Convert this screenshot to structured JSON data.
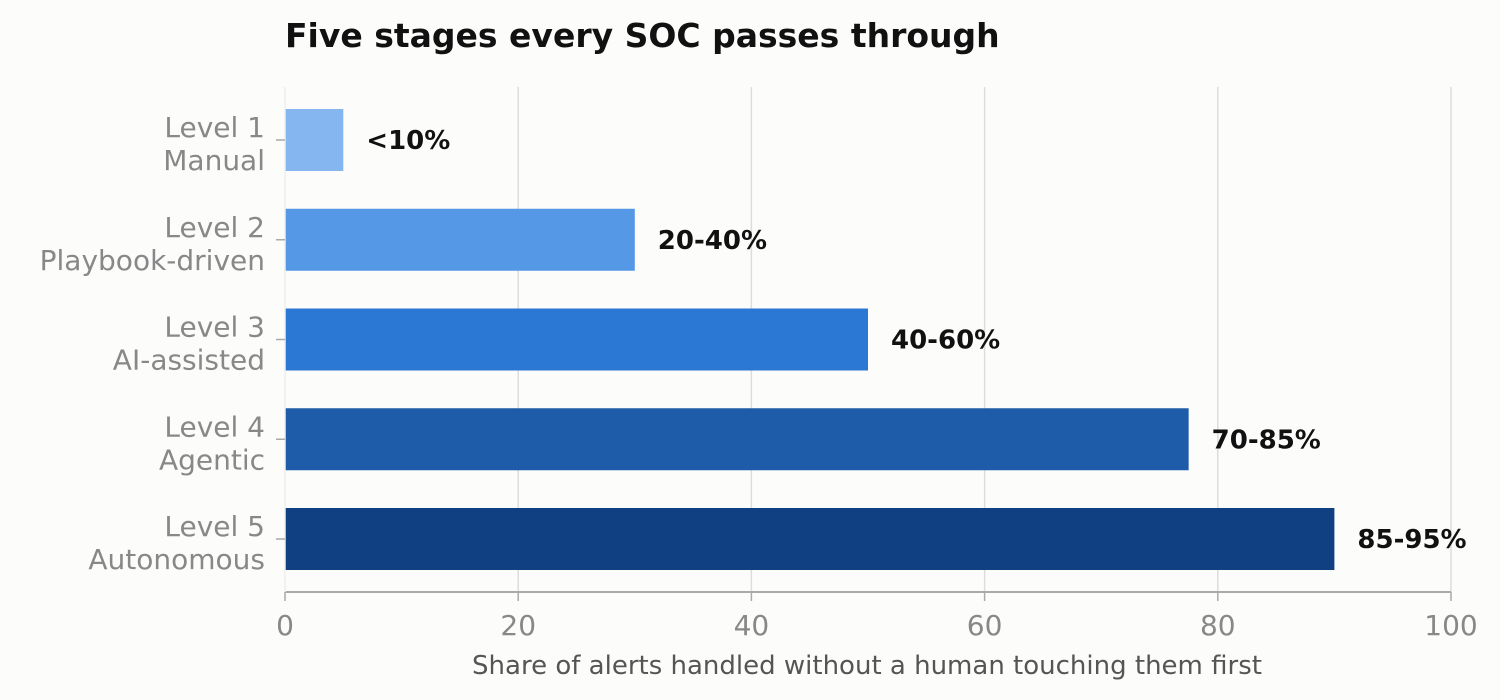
{
  "chart_data": {
    "type": "bar",
    "orientation": "horizontal",
    "title": "Five stages every SOC passes through",
    "xlabel": "Share of alerts handled without a human touching them first",
    "ylabel": "",
    "xlim": [
      0,
      100
    ],
    "xticks": [
      0,
      20,
      40,
      60,
      80,
      100
    ],
    "grid": "vertical",
    "categories": [
      [
        "Level 1",
        "Manual"
      ],
      [
        "Level 2",
        "Playbook-driven"
      ],
      [
        "Level 3",
        "AI-assisted"
      ],
      [
        "Level 4",
        "Agentic"
      ],
      [
        "Level 5",
        "Autonomous"
      ]
    ],
    "values": [
      5,
      30,
      50,
      77.5,
      90
    ],
    "data_labels": [
      "<10%",
      "20-40%",
      "40-60%",
      "70-85%",
      "85-95%"
    ],
    "colors": [
      "#86b6ef",
      "#5598e6",
      "#2a78d4",
      "#1e5ba8",
      "#114082"
    ]
  }
}
